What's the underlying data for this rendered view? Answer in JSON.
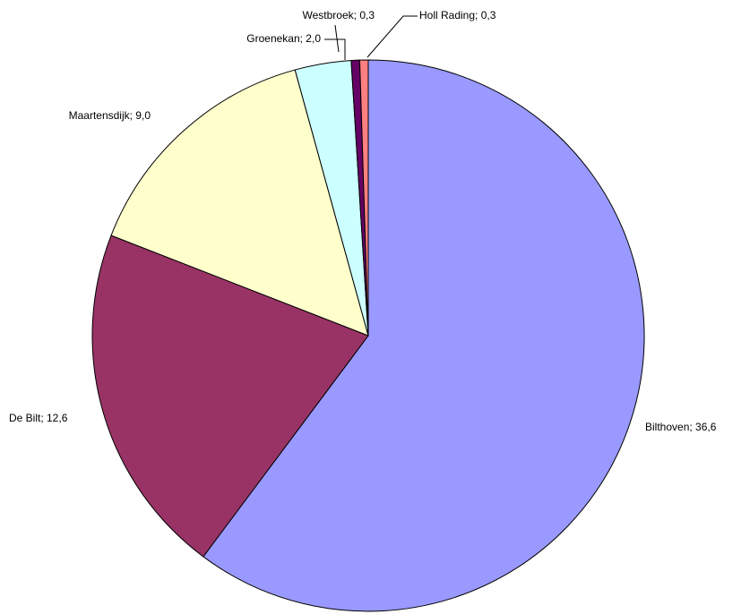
{
  "chart_data": {
    "type": "pie",
    "values": [
      36.6,
      12.6,
      9.0,
      2.0,
      0.3,
      0.3
    ],
    "value_labels": [
      "Bilthoven; 36,6",
      "De Bilt; 12,6",
      "Maartensdijk; 9,0",
      "Groenekan; 2,0",
      "Westbroek; 0,3",
      "Holl Rading; 0,3"
    ],
    "colors": [
      "#9999ff",
      "#993366",
      "#ffffcc",
      "#ccffff",
      "#660066",
      "#ff8080"
    ]
  }
}
